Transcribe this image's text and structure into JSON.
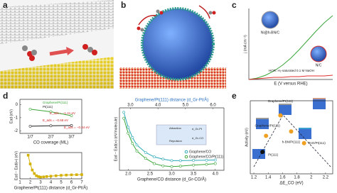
{
  "figure": {
    "panel_labels": [
      "a",
      "b",
      "c",
      "d",
      "e"
    ]
  },
  "chart_data": [
    {
      "type": "line",
      "x_label": "E (V versus RHE)",
      "y_label": "j (mA cm⁻²)",
      "annotation": "HOR: H₂-saturated 0.1 M NaOH",
      "x": [
        0,
        0.1,
        0.2,
        0.3,
        0.4,
        0.5,
        0.6,
        0.7,
        0.8,
        0.9,
        1.0
      ],
      "xlim": [
        0,
        1
      ],
      "ylim": [
        0,
        1
      ],
      "series": [
        {
          "name": "Ni@h-BN/C",
          "color": "#3aa63a",
          "values": [
            0,
            0.02,
            0.06,
            0.12,
            0.2,
            0.3,
            0.42,
            0.55,
            0.68,
            0.8,
            0.9
          ]
        },
        {
          "name": "N/C",
          "color": "#e03030",
          "values": [
            0,
            0.01,
            0.02,
            0.03,
            0.03,
            0.04,
            0.04,
            0.05,
            0.05,
            0.05,
            0.06
          ]
        }
      ]
    },
    {
      "type": "line",
      "x_label": "CO coverage (ML)",
      "y_label": "Ead (eV)",
      "categories": [
        "1/7",
        "2/7",
        "3/7"
      ],
      "ylim": [
        -2.2,
        0.4
      ],
      "yticks": [
        0,
        -1,
        -2
      ],
      "annotations": [
        "E_ads = −1.41 eV",
        "E_ads = −0.68 eV",
        "E_ads = −0.44 eV"
      ],
      "series": [
        {
          "name": "Graphene/Pt(111)",
          "color": "#3aa63a",
          "values": [
            -0.35,
            -0.55,
            -0.85
          ]
        },
        {
          "name": "Pt(111)",
          "color": "#222222",
          "values": [
            -1.65,
            -1.62,
            -1.6
          ]
        }
      ]
    },
    {
      "type": "line",
      "x_label": "Graphene/Pt(111) distance (d_Gr-Pt/Å)",
      "y_label": "Ead − Ead(∞) (eV)",
      "x": [
        1.8,
        2.0,
        2.2,
        2.4,
        2.6,
        2.8,
        3.0,
        3.3,
        3.6,
        4,
        4.5,
        5,
        5.5,
        6,
        6.5,
        7
      ],
      "xlim": [
        1,
        7
      ],
      "xticks": [
        1,
        2,
        3,
        4,
        5,
        6,
        7
      ],
      "ylim": [
        -0.5,
        2.5
      ],
      "series": [
        {
          "name": "Graphene/Pt(111)",
          "color": "#d4b000",
          "values": [
            2.2,
            1.2,
            0.5,
            0.1,
            -0.15,
            -0.25,
            -0.3,
            -0.28,
            -0.24,
            -0.2,
            -0.15,
            -0.1,
            -0.07,
            -0.05,
            -0.03,
            -0.02
          ]
        }
      ]
    },
    {
      "type": "line",
      "x_label": "Graphene/CO distance (d_Gr-CO/Å)",
      "x2_label": "Graphene/Pt(111) distance (d_Gr-Pt/Å)",
      "y_label": "Ead − Ead(∞) (eV/molecule)",
      "annotations": [
        "Attraction",
        "Repulsion",
        "d_Gr-Pt",
        "d_Gr-CO"
      ],
      "x": [
        1.9,
        2.0,
        2.1,
        2.2,
        2.4,
        2.6,
        2.8,
        3.0,
        3.2,
        3.5,
        3.8,
        4.0
      ],
      "xlim": [
        1.8,
        4.2
      ],
      "xticks": [
        {
          "value": 2,
          "label": "2.0"
        },
        2.5,
        {
          "value": 3,
          "label": "3.0"
        },
        3.5,
        {
          "value": 4,
          "label": "4.0"
        }
      ],
      "x2lim": [
        2.6,
        6.4
      ],
      "x2ticks": [
        {
          "value": 3,
          "label": "3.0"
        },
        {
          "value": 4,
          "label": "4.0"
        },
        {
          "value": 5,
          "label": "5.0"
        },
        {
          "value": 6,
          "label": "6.0"
        }
      ],
      "ylim": [
        -0.7,
        3.5
      ],
      "series": [
        {
          "name": "Graphene/CO",
          "color": "#2aa9b8",
          "values": [
            3.2,
            2.2,
            1.5,
            1.0,
            0.5,
            0.2,
            0.05,
            -0.05,
            -0.05,
            -0.03,
            -0.02,
            -0.01
          ]
        },
        {
          "name": "Graphene/CO/Pt(111)",
          "color": "#3aa63a",
          "values": [
            2.8,
            1.8,
            1.1,
            0.6,
            0.1,
            -0.25,
            -0.4,
            -0.45,
            -0.42,
            -0.35,
            -0.3,
            -0.25
          ]
        }
      ]
    },
    {
      "type": "scatter",
      "x_label": "ΔE_CO (eV)",
      "y_label": "Activity (eV)",
      "xlim": [
        1.15,
        2.3
      ],
      "xticks": [
        1.2,
        1.4,
        1.6,
        1.8,
        2.0,
        2.2
      ],
      "ylim": [
        0,
        1
      ],
      "series": [
        {
          "name": "Pt(111)",
          "color": "#111111",
          "x": [
            1.32
          ],
          "values": [
            0.3
          ]
        },
        {
          "name": "Graphene/Pt(111)",
          "color": "#f0a020",
          "x": [
            1.37
          ],
          "values": [
            0.52
          ]
        },
        {
          "name": "Graphene/Pt(111)",
          "color": "#f0a020",
          "x": [
            1.57
          ],
          "values": [
            0.8
          ]
        },
        {
          "name": "h-BN/Pt(111)",
          "color": "#f0a020",
          "x": [
            1.72
          ],
          "values": [
            0.58
          ]
        },
        {
          "name": "ZnO/Pt(111)",
          "color": "#f0a020",
          "x": [
            1.9
          ],
          "values": [
            0.42
          ]
        }
      ]
    }
  ]
}
